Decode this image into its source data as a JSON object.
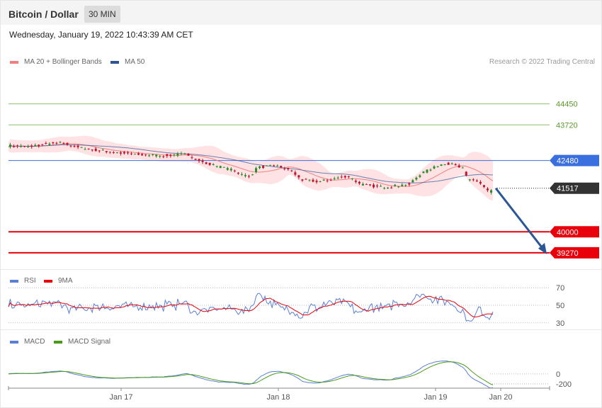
{
  "header": {
    "title": "Bitcoin / Dollar",
    "timeframe": "30 MIN",
    "datetime": "Wednesday, January 19, 2022 10:43:39 AM CET"
  },
  "colors": {
    "ma20": "#f08080",
    "ma50": "#2b5797",
    "bull": "#2a8a2a",
    "bear": "#c0142a",
    "resistance": "#8cc06a",
    "pivot": "#3a6fe0",
    "support": "#e8000b",
    "rsi": "#5a7fd6",
    "rsi_ma": "#e8000b",
    "macd": "#5a7fd6",
    "signal": "#4a9a1a",
    "band": "#fdd5d8"
  },
  "legend": {
    "ma20": "MA 20 + Bollinger Bands",
    "ma50": "MA 50",
    "credit": "Research © 2022 Trading Central",
    "rsi": "RSI",
    "rsi_ma": "9MA",
    "macd": "MACD",
    "macd_signal": "MACD Signal"
  },
  "chart_data": [
    {
      "type": "candlestick",
      "ylim": [
        38800,
        45600
      ],
      "x_ticks": [
        "Jan 17",
        "Jan 18",
        "Jan 19",
        "Jan 20"
      ],
      "levels": [
        {
          "value": 44450,
          "label": "44450",
          "kind": "resistance"
        },
        {
          "value": 43720,
          "label": "43720",
          "kind": "resistance"
        },
        {
          "value": 42480,
          "label": "42480",
          "kind": "pivot"
        },
        {
          "value": 41517,
          "label": "41517",
          "kind": "last"
        },
        {
          "value": 40000,
          "label": "40000",
          "kind": "support"
        },
        {
          "value": 39270,
          "label": "39270",
          "kind": "support"
        }
      ],
      "forecast_arrow": {
        "from": 41517,
        "to": 39270
      }
    },
    {
      "type": "line",
      "name": "RSI",
      "ylim": [
        25,
        75
      ],
      "y_ticks": [
        {
          "value": 70,
          "label": "70"
        },
        {
          "value": 50,
          "label": "50"
        },
        {
          "value": 30,
          "label": "30"
        }
      ]
    },
    {
      "type": "line",
      "name": "MACD",
      "ylim": [
        -260,
        600
      ],
      "y_ticks": [
        {
          "value": 0,
          "label": "0"
        },
        {
          "value": -200,
          "label": "-200"
        }
      ]
    }
  ]
}
